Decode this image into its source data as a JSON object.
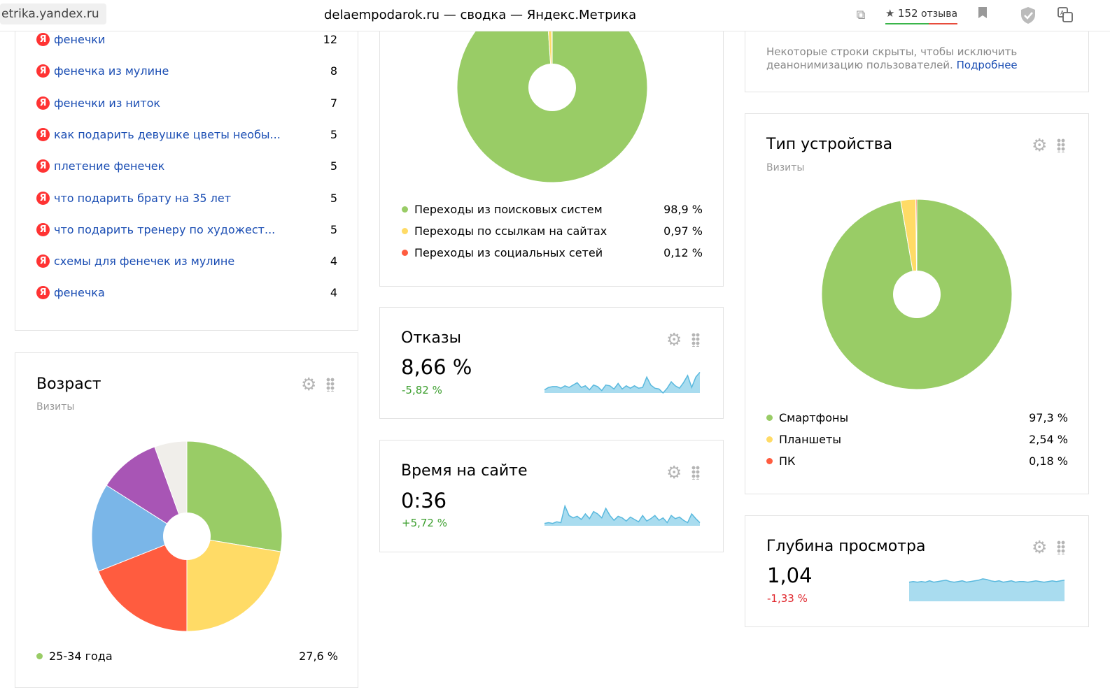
{
  "browser": {
    "url": "etrika.yandex.ru",
    "title": "delaempodarok.ru — сводка — Яндекс.Метрика",
    "reviews": {
      "count": "152",
      "label": "отзыва"
    },
    "icons": [
      "copy-link-icon",
      "star-icon",
      "bookmark-icon",
      "shield-icon",
      "translate-icon"
    ]
  },
  "search_phrases": {
    "items": [
      {
        "label": "фенечки",
        "value": "12"
      },
      {
        "label": "фенечка из мулине",
        "value": "8"
      },
      {
        "label": "фенечки из ниток",
        "value": "7"
      },
      {
        "label": "как подарить девушке цветы необы...",
        "value": "5"
      },
      {
        "label": "плетение фенечек",
        "value": "5"
      },
      {
        "label": "что подарить брату на 35 лет",
        "value": "5"
      },
      {
        "label": "что подарить тренеру по художест...",
        "value": "5"
      },
      {
        "label": "схемы для фенечек из мулине",
        "value": "4"
      },
      {
        "label": "фенечка",
        "value": "4"
      }
    ],
    "badge": "Я"
  },
  "age": {
    "title": "Возраст",
    "subtitle": "Визиты",
    "legend": [
      {
        "label": "25-34 года",
        "value": "27,6 %",
        "color": "#99cc66"
      }
    ]
  },
  "traffic": {
    "legend": [
      {
        "label": "Переходы из поисковых систем",
        "value": "98,9 %",
        "color": "#99cc66"
      },
      {
        "label": "Переходы по ссылкам на сайтах",
        "value": "0,97 %",
        "color": "#ffdb66"
      },
      {
        "label": "Переходы из социальных сетей",
        "value": "0,12 %",
        "color": "#ff5c3f"
      }
    ]
  },
  "bounce": {
    "title": "Отказы",
    "value": "8,66 %",
    "delta": "-5,82 %"
  },
  "time_on_site": {
    "title": "Время на сайте",
    "value": "0:36",
    "delta": "+5,72 %"
  },
  "privacy_note": {
    "text": "Некоторые строки скрыты, чтобы исключить деанонимизацию пользователей.",
    "link": "Подробнее"
  },
  "device": {
    "title": "Тип устройства",
    "subtitle": "Визиты",
    "legend": [
      {
        "label": "Смартфоны",
        "value": "97,3 %",
        "color": "#99cc66"
      },
      {
        "label": "Планшеты",
        "value": "2,54 %",
        "color": "#ffdb66"
      },
      {
        "label": "ПК",
        "value": "0,18 %",
        "color": "#ff5c3f"
      }
    ]
  },
  "depth": {
    "title": "Глубина просмотра",
    "value": "1,04",
    "delta": "-1,33 %"
  },
  "chart_data": [
    {
      "type": "pie",
      "categories": [
        "25-34 года",
        "",
        "",
        "",
        "",
        ""
      ],
      "values": [
        27.6,
        22.4,
        19.0,
        15.0,
        10.5,
        5.5
      ],
      "colors": [
        "#99cc66",
        "#ffdb66",
        "#ff5c3f",
        "#7ab6e8",
        "#a855b5",
        "#f0eeea"
      ]
    },
    {
      "type": "pie",
      "categories": [
        "Переходы из поисковых систем",
        "Переходы по ссылкам на сайтах",
        "Переходы из социальных сетей"
      ],
      "values": [
        98.9,
        0.97,
        0.12
      ],
      "colors": [
        "#99cc66",
        "#ffdb66",
        "#ff5c3f"
      ]
    },
    {
      "type": "pie",
      "categories": [
        "Смартфоны",
        "Планшеты",
        "ПК"
      ],
      "values": [
        97.3,
        2.54,
        0.18
      ],
      "colors": [
        "#99cc66",
        "#ffdb66",
        "#ff5c3f"
      ]
    },
    {
      "type": "area",
      "values": [
        4,
        7,
        8,
        8,
        6,
        9,
        7,
        10,
        13,
        7,
        9,
        4,
        10,
        8,
        3,
        10,
        9,
        5,
        12,
        5,
        9,
        6,
        9,
        6,
        7,
        20,
        10,
        6,
        5,
        0,
        6,
        14,
        9,
        6,
        13,
        22,
        7,
        20,
        26
      ],
      "color": "#5ab9de"
    },
    {
      "type": "area",
      "values": [
        3,
        4,
        3,
        5,
        4,
        25,
        13,
        10,
        12,
        8,
        15,
        9,
        18,
        15,
        10,
        22,
        13,
        7,
        12,
        10,
        6,
        11,
        8,
        5,
        13,
        6,
        9,
        13,
        7,
        10,
        4,
        13,
        9,
        11,
        7,
        4,
        15,
        9,
        4
      ],
      "color": "#5ab9de"
    },
    {
      "type": "area",
      "values": [
        29,
        30,
        29,
        30,
        29,
        31,
        29,
        30,
        31,
        32,
        30,
        29,
        30,
        31,
        29,
        30,
        31,
        32,
        34,
        33,
        31,
        30,
        31,
        29,
        30,
        31,
        29,
        30,
        30,
        29,
        30,
        31,
        30,
        29,
        30,
        31,
        30,
        31,
        32
      ],
      "color": "#5ab9de"
    }
  ]
}
